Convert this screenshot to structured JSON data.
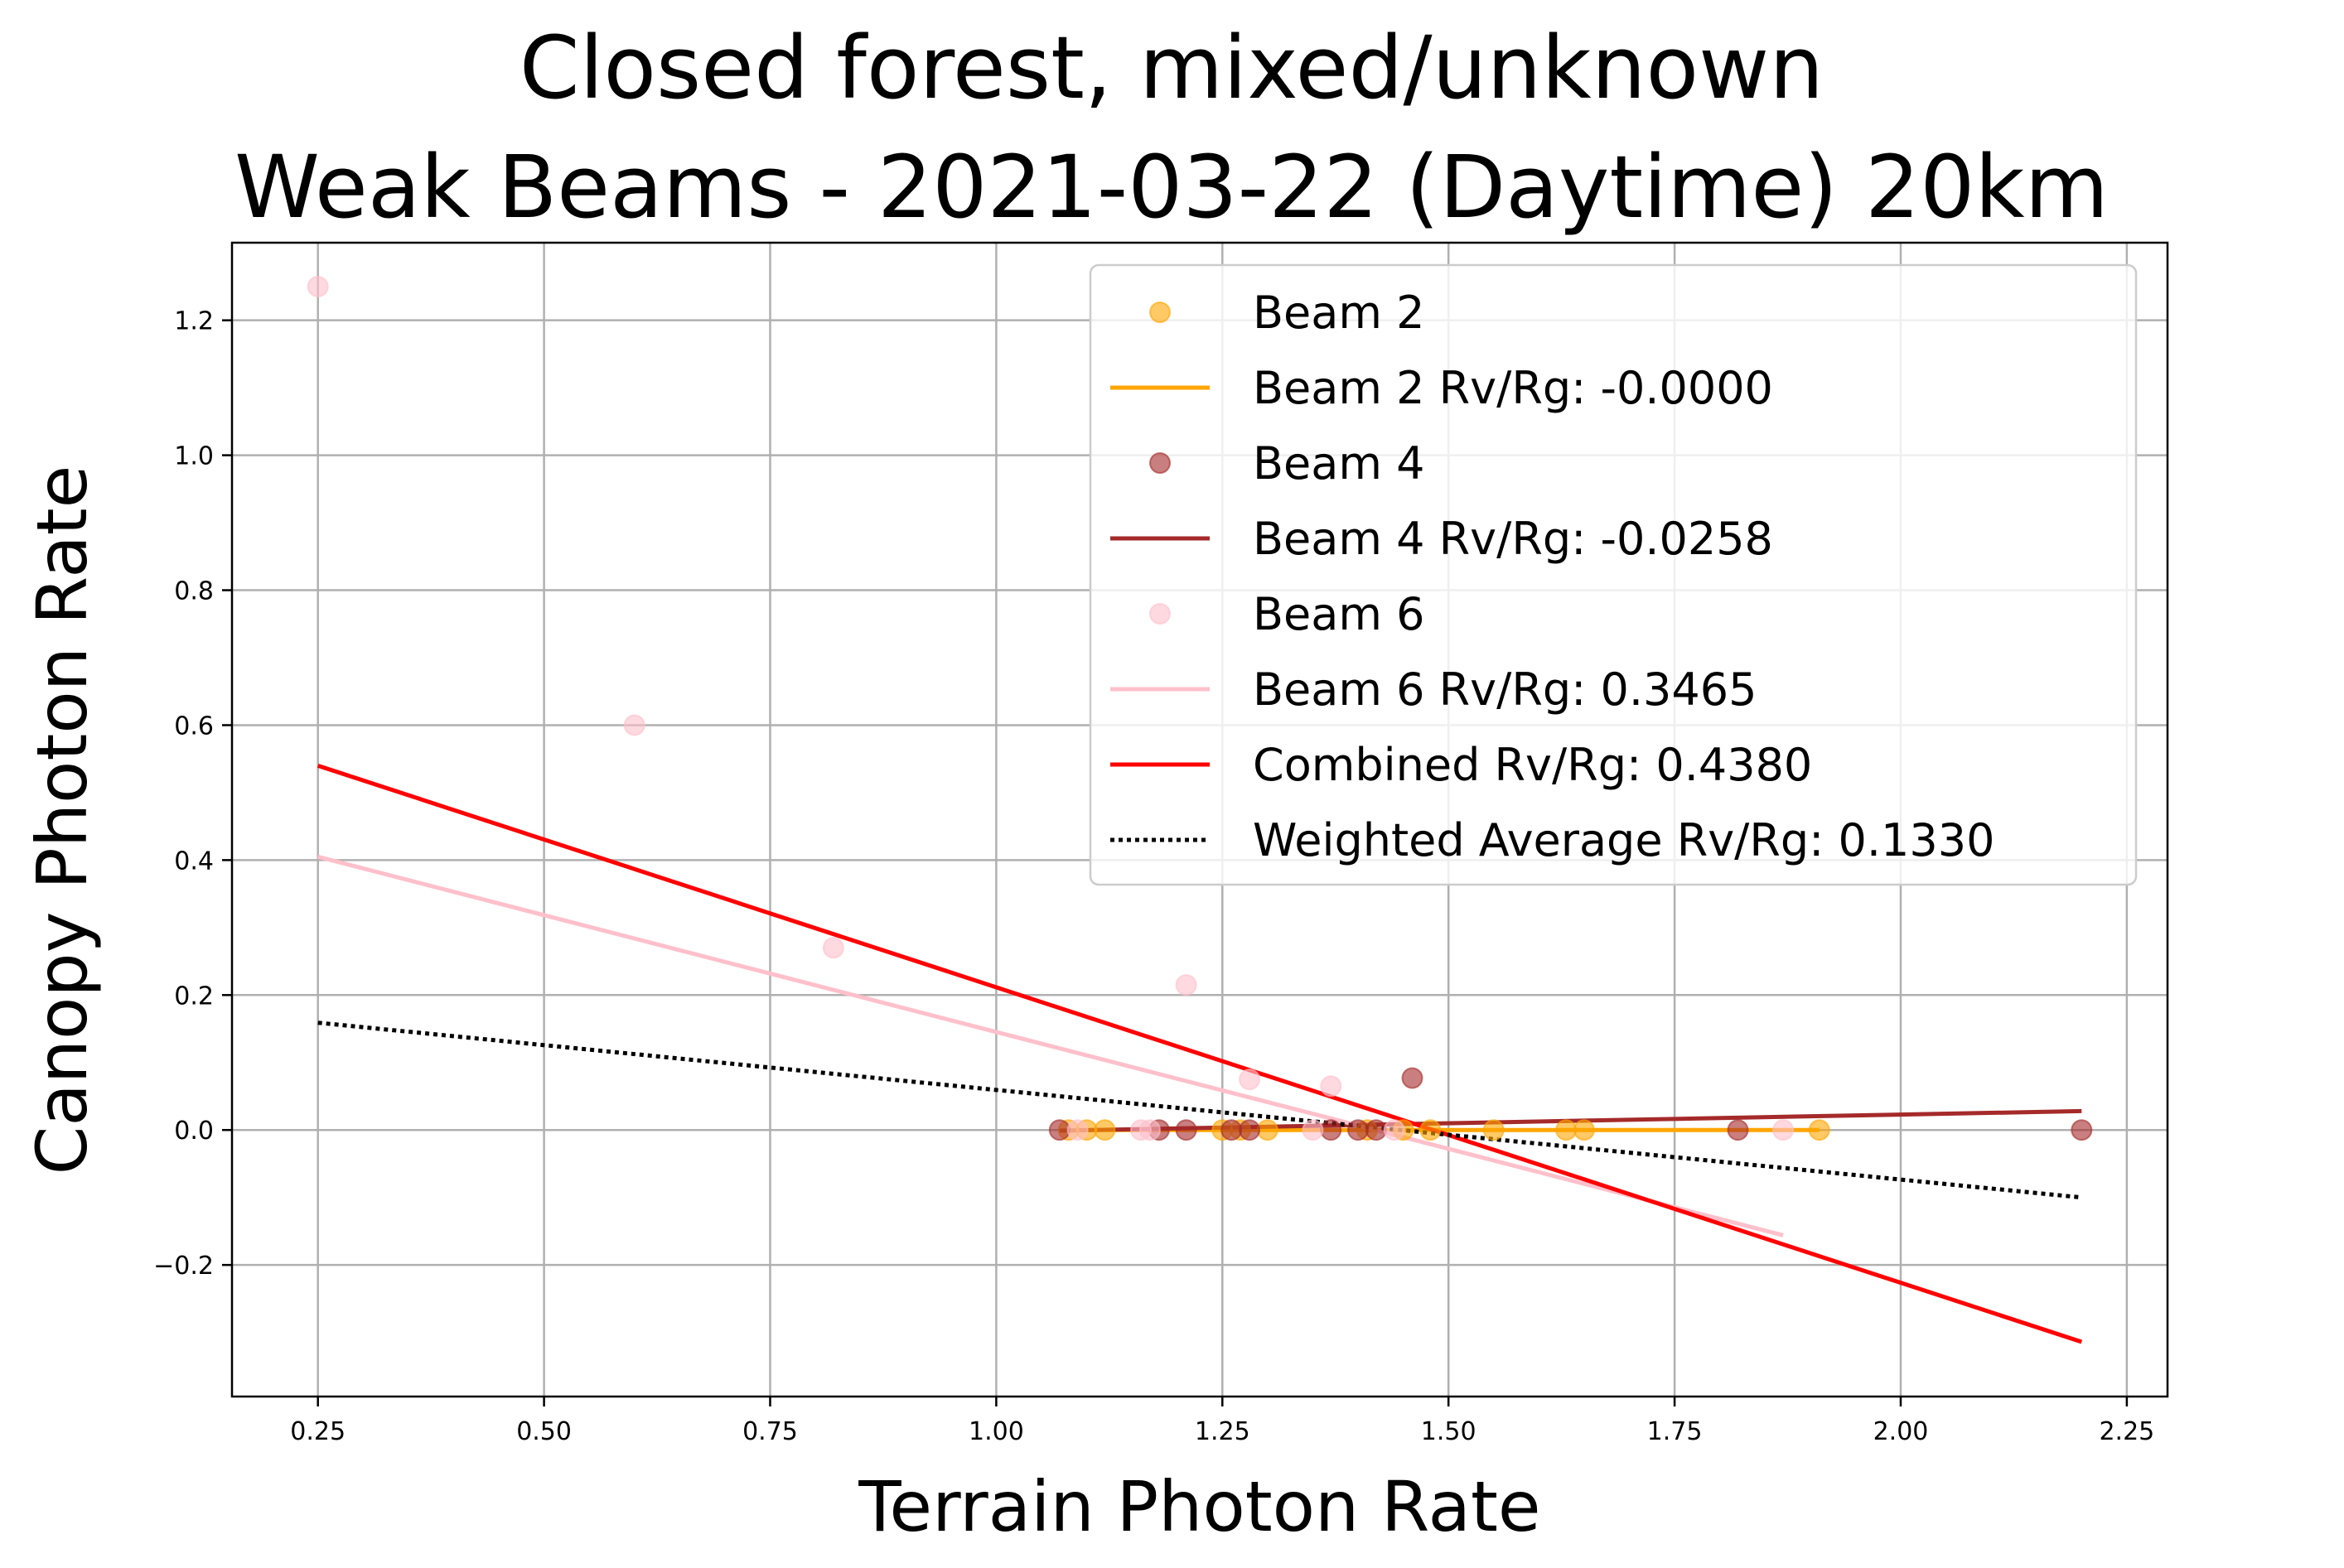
{
  "chart_data": {
    "type": "scatter",
    "title": "Closed forest, mixed/unknown",
    "subtitle": "Weak Beams - 2021-03-22 (Daytime) 20km",
    "xlabel": "Terrain Photon Rate",
    "ylabel": "Canopy Photon Rate",
    "xlim": [
      0.155,
      2.295
    ],
    "ylim": [
      -0.395,
      1.315
    ],
    "xticks": [
      0.25,
      0.5,
      0.75,
      1.0,
      1.25,
      1.5,
      1.75,
      2.0,
      2.25
    ],
    "xtick_labels": [
      "0.25",
      "0.50",
      "0.75",
      "1.00",
      "1.25",
      "1.50",
      "1.75",
      "2.00",
      "2.25"
    ],
    "yticks": [
      -0.2,
      0.0,
      0.2,
      0.4,
      0.6,
      0.8,
      1.0,
      1.2
    ],
    "ytick_labels": [
      "−0.2",
      "0.0",
      "0.2",
      "0.4",
      "0.6",
      "0.8",
      "1.0",
      "1.2"
    ],
    "grid": true,
    "legend_position": "top-right",
    "series": [
      {
        "name": "Beam 2",
        "kind": "scatter",
        "color": "#FFA500",
        "points": [
          [
            1.08,
            0.0
          ],
          [
            1.1,
            0.0
          ],
          [
            1.12,
            0.0
          ],
          [
            1.25,
            0.0
          ],
          [
            1.27,
            0.0
          ],
          [
            1.3,
            0.0
          ],
          [
            1.41,
            0.0
          ],
          [
            1.45,
            0.0
          ],
          [
            1.48,
            0.0
          ],
          [
            1.55,
            0.0
          ],
          [
            1.63,
            0.0
          ],
          [
            1.65,
            0.0
          ],
          [
            1.91,
            0.0
          ]
        ]
      },
      {
        "name": "Beam 2 Rv/Rg: -0.0000",
        "kind": "line",
        "color": "#FFA500",
        "style": "solid",
        "x": [
          1.08,
          1.91
        ],
        "y": [
          0.0,
          0.0
        ]
      },
      {
        "name": "Beam 4",
        "kind": "scatter",
        "color": "#A52A2A",
        "points": [
          [
            1.07,
            0.0
          ],
          [
            1.18,
            0.0
          ],
          [
            1.21,
            0.0
          ],
          [
            1.26,
            0.0
          ],
          [
            1.28,
            0.0
          ],
          [
            1.37,
            0.0
          ],
          [
            1.4,
            0.0
          ],
          [
            1.42,
            0.0
          ],
          [
            1.46,
            0.077
          ],
          [
            1.82,
            0.0
          ],
          [
            2.2,
            0.0
          ]
        ]
      },
      {
        "name": "Beam 4 Rv/Rg: -0.0258",
        "kind": "line",
        "color": "#A52A2A",
        "style": "solid",
        "x": [
          1.07,
          2.2
        ],
        "y": [
          -0.001,
          0.028
        ]
      },
      {
        "name": "Beam 6",
        "kind": "scatter",
        "color": "#FFC0CB",
        "points": [
          [
            0.25,
            1.25
          ],
          [
            0.6,
            0.6
          ],
          [
            0.82,
            0.27
          ],
          [
            1.09,
            0.0
          ],
          [
            1.16,
            0.0
          ],
          [
            1.17,
            0.0
          ],
          [
            1.21,
            0.215
          ],
          [
            1.28,
            0.075
          ],
          [
            1.35,
            0.0
          ],
          [
            1.37,
            0.065
          ],
          [
            1.44,
            0.0
          ],
          [
            1.87,
            0.0
          ]
        ]
      },
      {
        "name": "Beam 6 Rv/Rg: 0.3465",
        "kind": "line",
        "color": "#FFC0CB",
        "style": "solid",
        "x": [
          0.25,
          1.87
        ],
        "y": [
          0.405,
          -0.156
        ]
      },
      {
        "name": "Combined Rv/Rg: 0.4380",
        "kind": "line",
        "color": "#FF0000",
        "style": "solid",
        "x": [
          0.25,
          2.2
        ],
        "y": [
          0.54,
          -0.314
        ]
      },
      {
        "name": "Weighted Average Rv/Rg: 0.1330",
        "kind": "line",
        "color": "#000000",
        "style": "dotted",
        "x": [
          0.25,
          2.2
        ],
        "y": [
          0.159,
          -0.1
        ]
      }
    ]
  }
}
